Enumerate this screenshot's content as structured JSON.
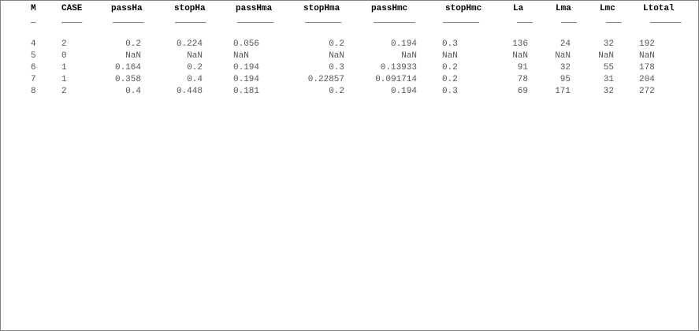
{
  "table": {
    "headers": [
      "M",
      "CASE",
      "passHa",
      "stopHa",
      "passHma",
      "stopHma",
      "passHmc",
      "stopHmc",
      "La",
      "Lma",
      "Lmc",
      "Ltotal"
    ],
    "rules": [
      "_",
      "____",
      "______",
      "______",
      "_______",
      "_______",
      "________",
      "_______",
      "___",
      "___",
      "___",
      "______"
    ],
    "rows": [
      [
        "4",
        "2",
        "0.2",
        "0.224",
        "0.056",
        "0.2",
        "0.194",
        "0.3",
        "136",
        "24",
        "32",
        "192"
      ],
      [
        "5",
        "0",
        "NaN",
        "NaN",
        "NaN",
        "NaN",
        "NaN",
        "NaN",
        "NaN",
        "NaN",
        "NaN",
        "NaN"
      ],
      [
        "6",
        "1",
        "0.164",
        "0.2",
        "0.194",
        "0.3",
        "0.13933",
        "0.2",
        "91",
        "32",
        "55",
        "178"
      ],
      [
        "7",
        "1",
        "0.358",
        "0.4",
        "0.194",
        "0.22857",
        "0.091714",
        "0.2",
        "78",
        "95",
        "31",
        "204"
      ],
      [
        "8",
        "2",
        "0.4",
        "0.448",
        "0.181",
        "0.2",
        "0.194",
        "0.3",
        "69",
        "171",
        "32",
        "272"
      ]
    ]
  }
}
